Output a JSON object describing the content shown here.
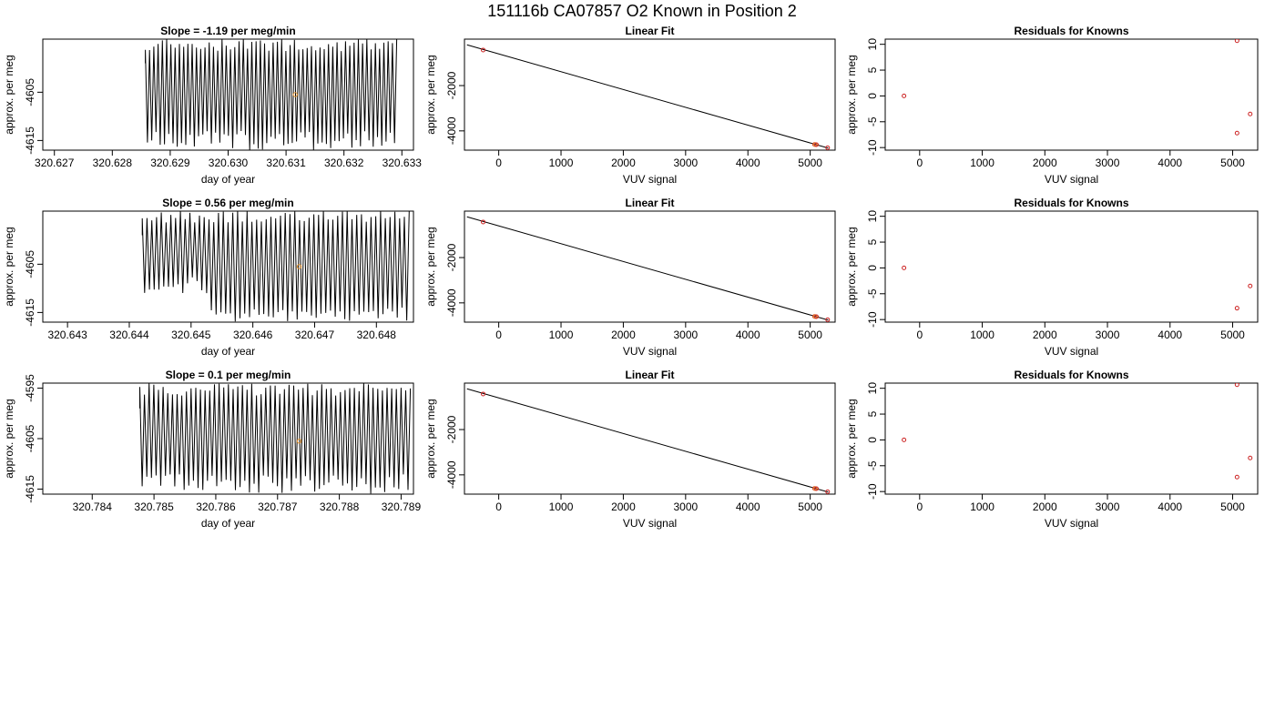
{
  "figure": {
    "title": "151116b     CA07857   O2 Known in Position  2"
  },
  "chart_data": [
    {
      "type": "line",
      "title": "Slope =  -1.19  per meg/min",
      "xlabel": "day of year",
      "ylabel": "approx. per meg",
      "xlim": [
        320.6268,
        320.6332
      ],
      "ylim": [
        -4617,
        -4594
      ],
      "xticks": [
        "320.627",
        "320.628",
        "320.629",
        "320.630",
        "320.631",
        "320.632",
        "320.633"
      ],
      "yticks": [
        "-4605",
        "-4615"
      ],
      "signal": {
        "x_start": 320.62857,
        "x_end": 320.63291,
        "cycles": 118,
        "low": -4617,
        "high": -4594,
        "min_low": -4617,
        "max_high": -4594
      },
      "marker": {
        "x": 320.63116,
        "y": -4605.5,
        "color": "#e8932a"
      }
    },
    {
      "type": "scatter",
      "title": "Linear Fit",
      "xlabel": "VUV signal",
      "ylabel": "approx. per meg",
      "xlim": [
        -550,
        5400
      ],
      "ylim": [
        -4850,
        50
      ],
      "xticks": [
        "0",
        "1000",
        "2000",
        "3000",
        "4000",
        "5000"
      ],
      "yticks": [
        "-2000",
        "-4000"
      ],
      "fit_line": {
        "x": [
          -510,
          5290
        ],
        "y": [
          -200,
          -4760
        ]
      },
      "points": [
        {
          "x": -250,
          "y": -430,
          "color": "#cc2222"
        },
        {
          "x": 5070,
          "y": -4600,
          "color": "#cc2222"
        },
        {
          "x": 5080,
          "y": -4605,
          "color": "#e8932a"
        },
        {
          "x": 5100,
          "y": -4610,
          "color": "#cc2222"
        },
        {
          "x": 5280,
          "y": -4745,
          "color": "#cc2222"
        }
      ]
    },
    {
      "type": "scatter",
      "title": "Residuals for Knowns",
      "xlabel": "VUV signal",
      "ylabel": "approx. per meg",
      "xlim": [
        -550,
        5400
      ],
      "ylim": [
        -10.5,
        11
      ],
      "xticks": [
        "0",
        "1000",
        "2000",
        "3000",
        "4000",
        "5000"
      ],
      "yticks": [
        "-10",
        "-5",
        "0",
        "5",
        "10"
      ],
      "points": [
        {
          "x": -250,
          "y": 0,
          "color": "#cc2222"
        },
        {
          "x": 5070,
          "y": 10.7,
          "color": "#cc2222"
        },
        {
          "x": 5070,
          "y": -7.2,
          "color": "#cc2222"
        },
        {
          "x": 5280,
          "y": -3.5,
          "color": "#cc2222"
        }
      ]
    },
    {
      "type": "line",
      "title": "Slope =  0.56  per meg/min",
      "xlabel": "day of year",
      "ylabel": "approx. per meg",
      "xlim": [
        320.6426,
        320.6486
      ],
      "ylim": [
        -4617,
        -4594
      ],
      "xticks": [
        "320.643",
        "320.644",
        "320.645",
        "320.646",
        "320.647",
        "320.648"
      ],
      "yticks": [
        "-4605",
        "-4615"
      ],
      "signal": {
        "x_start": 320.64421,
        "x_end": 320.64853,
        "cycles": 112,
        "low": -4611,
        "high": -4594,
        "min_low": -4617,
        "max_high": -4594
      },
      "marker": {
        "x": 320.64675,
        "y": -4605.5,
        "color": "#e8932a"
      }
    },
    {
      "type": "scatter",
      "title": "Linear Fit",
      "xlabel": "VUV signal",
      "ylabel": "approx. per meg",
      "xlim": [
        -550,
        5400
      ],
      "ylim": [
        -4850,
        50
      ],
      "xticks": [
        "0",
        "1000",
        "2000",
        "3000",
        "4000",
        "5000"
      ],
      "yticks": [
        "-2000",
        "-4000"
      ],
      "fit_line": {
        "x": [
          -510,
          5290
        ],
        "y": [
          -200,
          -4760
        ]
      },
      "points": [
        {
          "x": -250,
          "y": -430,
          "color": "#cc2222"
        },
        {
          "x": 5070,
          "y": -4600,
          "color": "#cc2222"
        },
        {
          "x": 5080,
          "y": -4605,
          "color": "#e8932a"
        },
        {
          "x": 5100,
          "y": -4610,
          "color": "#cc2222"
        },
        {
          "x": 5280,
          "y": -4745,
          "color": "#cc2222"
        }
      ]
    },
    {
      "type": "scatter",
      "title": "Residuals for Knowns",
      "xlabel": "VUV signal",
      "ylabel": "approx. per meg",
      "xlim": [
        -550,
        5400
      ],
      "ylim": [
        -10.5,
        11
      ],
      "xticks": [
        "0",
        "1000",
        "2000",
        "3000",
        "4000",
        "5000"
      ],
      "yticks": [
        "-10",
        "-5",
        "0",
        "5",
        "10"
      ],
      "points": [
        {
          "x": -250,
          "y": 0,
          "color": "#cc2222"
        },
        {
          "x": 5070,
          "y": -7.8,
          "color": "#cc2222"
        },
        {
          "x": 5280,
          "y": -3.5,
          "color": "#cc2222"
        }
      ]
    },
    {
      "type": "line",
      "title": "Slope =  0.1  per meg/min",
      "xlabel": "day of year",
      "ylabel": "approx. per meg",
      "xlim": [
        320.7832,
        320.7892
      ],
      "ylim": [
        -4616,
        -4594
      ],
      "xticks": [
        "320.784",
        "320.785",
        "320.786",
        "320.787",
        "320.788",
        "320.789"
      ],
      "yticks": [
        "-4595",
        "-4605",
        "-4615"
      ],
      "signal": {
        "x_start": 320.78477,
        "x_end": 320.78915,
        "cycles": 116,
        "low": -4616,
        "high": -4594,
        "min_low": -4616,
        "max_high": -4594
      },
      "marker": {
        "x": 320.78735,
        "y": -4605.5,
        "color": "#e8932a"
      }
    },
    {
      "type": "scatter",
      "title": "Linear Fit",
      "xlabel": "VUV signal",
      "ylabel": "approx. per meg",
      "xlim": [
        -550,
        5400
      ],
      "ylim": [
        -4850,
        50
      ],
      "xticks": [
        "0",
        "1000",
        "2000",
        "3000",
        "4000",
        "5000"
      ],
      "yticks": [
        "-2000",
        "-4000"
      ],
      "fit_line": {
        "x": [
          -510,
          5290
        ],
        "y": [
          -200,
          -4760
        ]
      },
      "points": [
        {
          "x": -250,
          "y": -430,
          "color": "#cc2222"
        },
        {
          "x": 5070,
          "y": -4600,
          "color": "#cc2222"
        },
        {
          "x": 5080,
          "y": -4605,
          "color": "#e8932a"
        },
        {
          "x": 5100,
          "y": -4610,
          "color": "#cc2222"
        },
        {
          "x": 5280,
          "y": -4745,
          "color": "#cc2222"
        }
      ]
    },
    {
      "type": "scatter",
      "title": "Residuals for Knowns",
      "xlabel": "VUV signal",
      "ylabel": "approx. per meg",
      "xlim": [
        -550,
        5400
      ],
      "ylim": [
        -10.5,
        11
      ],
      "xticks": [
        "0",
        "1000",
        "2000",
        "3000",
        "4000",
        "5000"
      ],
      "yticks": [
        "-10",
        "-5",
        "0",
        "5",
        "10"
      ],
      "points": [
        {
          "x": -250,
          "y": 0,
          "color": "#cc2222"
        },
        {
          "x": 5070,
          "y": 10.7,
          "color": "#cc2222"
        },
        {
          "x": 5070,
          "y": -7.2,
          "color": "#cc2222"
        },
        {
          "x": 5280,
          "y": -3.5,
          "color": "#cc2222"
        }
      ]
    }
  ]
}
